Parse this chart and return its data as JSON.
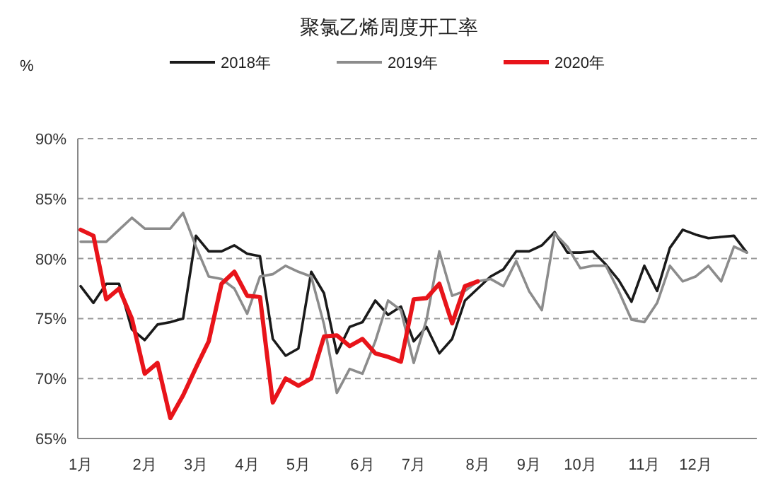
{
  "chart_data": {
    "type": "line",
    "title": "聚氯乙烯周度开工率",
    "ylabel": "%",
    "legend": "top",
    "grid": "y",
    "line_style": "solid",
    "marker": "none",
    "ylim": [
      65,
      90
    ],
    "yticks": [
      {
        "value": 65,
        "label": "65%"
      },
      {
        "value": 70,
        "label": "70%"
      },
      {
        "value": 75,
        "label": "75%"
      },
      {
        "value": 80,
        "label": "80%"
      },
      {
        "value": 85,
        "label": "85%"
      },
      {
        "value": 90,
        "label": "90%"
      }
    ],
    "categories": [
      "1月",
      null,
      null,
      null,
      null,
      "2月",
      null,
      null,
      null,
      "3月",
      null,
      null,
      null,
      "4月",
      null,
      null,
      null,
      "5月",
      null,
      null,
      null,
      null,
      "6月",
      null,
      null,
      null,
      "7月",
      null,
      null,
      null,
      null,
      "8月",
      null,
      null,
      null,
      "9月",
      null,
      null,
      null,
      "10月",
      null,
      null,
      null,
      null,
      "11月",
      null,
      null,
      null,
      "12月",
      null,
      null,
      null,
      null
    ],
    "series": [
      {
        "name": "2018年",
        "color": "#1a1a1a",
        "values": [
          77.7,
          76.3,
          77.9,
          77.9,
          74.1,
          73.2,
          74.5,
          74.7,
          75.0,
          81.9,
          80.6,
          80.6,
          81.1,
          80.4,
          80.2,
          73.3,
          71.9,
          72.5,
          78.9,
          77.1,
          72.1,
          74.3,
          74.7,
          76.5,
          75.3,
          76.0,
          73.1,
          74.3,
          72.1,
          73.3,
          76.5,
          77.5,
          78.5,
          79.1,
          80.6,
          80.6,
          81.1,
          82.2,
          80.5,
          80.5,
          80.6,
          79.5,
          78.2,
          76.4,
          79.4,
          77.3,
          80.9,
          82.4,
          82.0,
          81.7,
          81.8,
          81.9,
          80.5
        ]
      },
      {
        "name": "2019年",
        "color": "#8c8c8c",
        "values": [
          81.4,
          81.4,
          81.4,
          82.4,
          83.4,
          82.5,
          82.5,
          82.5,
          83.8,
          81.0,
          78.5,
          78.3,
          77.5,
          75.4,
          78.5,
          78.7,
          79.4,
          78.9,
          78.5,
          74.5,
          68.8,
          70.8,
          70.4,
          73.1,
          76.5,
          75.7,
          71.3,
          74.9,
          80.6,
          76.9,
          77.3,
          78.1,
          78.3,
          77.7,
          79.8,
          77.3,
          75.7,
          82.1,
          81.0,
          79.2,
          79.4,
          79.4,
          77.3,
          74.9,
          74.7,
          76.3,
          79.4,
          78.1,
          78.5,
          79.4,
          78.1,
          81.0,
          80.5
        ]
      },
      {
        "name": "2020年",
        "color": "#e8141a",
        "values": [
          82.4,
          81.9,
          76.6,
          77.5,
          75.0,
          70.4,
          71.3,
          66.7,
          68.6,
          70.9,
          73.1,
          77.9,
          78.9,
          76.9,
          76.8,
          68.0,
          70.0,
          69.4,
          70.0,
          73.5,
          73.6,
          72.7,
          73.3,
          72.1,
          71.8,
          71.4,
          76.6,
          76.7,
          77.9,
          74.6,
          77.7,
          78.1,
          null,
          null,
          null,
          null,
          null,
          null,
          null,
          null,
          null,
          null,
          null,
          null,
          null,
          null,
          null,
          null,
          null,
          null,
          null,
          null,
          null
        ]
      }
    ]
  }
}
